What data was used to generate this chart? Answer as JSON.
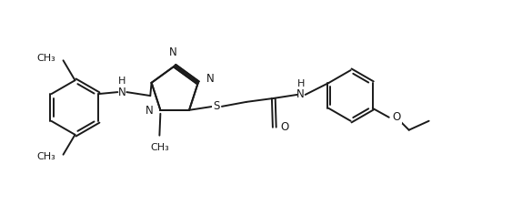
{
  "figsize": [
    5.63,
    2.36
  ],
  "dpi": 100,
  "bg_color": "#ffffff",
  "line_color": "#1a1a1a",
  "line_width": 1.4,
  "font_size": 8.5,
  "xlim": [
    0,
    5.63
  ],
  "ylim": [
    0,
    2.36
  ]
}
